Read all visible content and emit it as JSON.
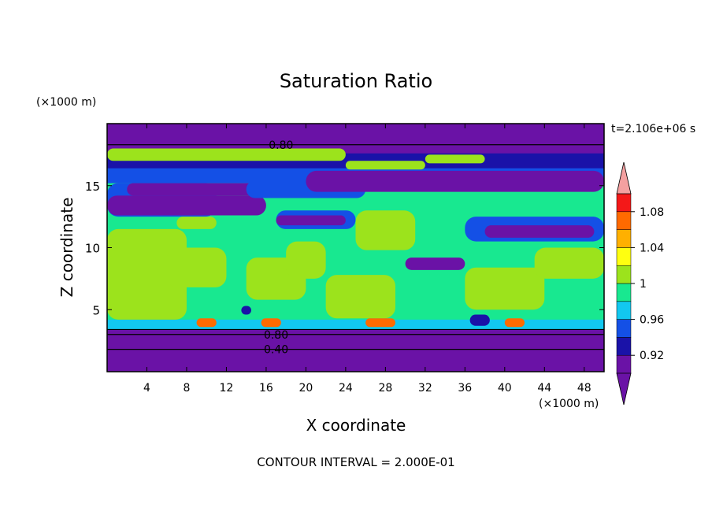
{
  "chart_data": {
    "type": "heatmap",
    "title": "Saturation Ratio",
    "xlabel": "X coordinate",
    "ylabel": "Z coordinate",
    "x_unit": "(×1000 m)",
    "y_unit": "(×1000 m)",
    "time_label": "t=2.106e+06 s",
    "footer": "CONTOUR INTERVAL = 2.000E-01",
    "xlim": [
      0,
      50
    ],
    "ylim": [
      0,
      20
    ],
    "x_ticks": [
      "4",
      "8",
      "12",
      "16",
      "20",
      "24",
      "28",
      "32",
      "36",
      "40",
      "44",
      "48"
    ],
    "y_ticks": [
      "5",
      "10",
      "15"
    ],
    "colorbar": {
      "labels": [
        "1.08",
        "1.04",
        "1",
        "0.96",
        "0.92"
      ],
      "levels": [
        {
          "lo": 0.9,
          "hi": 0.92,
          "color": "#6a12a6"
        },
        {
          "lo": 0.92,
          "hi": 0.94,
          "color": "#1a12a8"
        },
        {
          "lo": 0.94,
          "hi": 0.96,
          "color": "#1450e6"
        },
        {
          "lo": 0.96,
          "hi": 0.98,
          "color": "#12c8f0"
        },
        {
          "lo": 0.98,
          "hi": 1.0,
          "color": "#18e890"
        },
        {
          "lo": 1.0,
          "hi": 1.02,
          "color": "#9ce31c"
        },
        {
          "lo": 1.02,
          "hi": 1.04,
          "color": "#ffff10"
        },
        {
          "lo": 1.04,
          "hi": 1.06,
          "color": "#ffb000"
        },
        {
          "lo": 1.06,
          "hi": 1.08,
          "color": "#ff6a00"
        },
        {
          "lo": 1.08,
          "hi": 1.1,
          "color": "#f41818"
        }
      ],
      "over_color": "#f4a0a0",
      "under_color": "#6a12a6"
    },
    "contour_labels": [
      {
        "text": "0.80",
        "x": 17.5,
        "z": 18.3
      },
      {
        "text": "0.80",
        "x": 17.0,
        "z": 3.0
      },
      {
        "text": "0.40",
        "x": 17.0,
        "z": 1.8
      }
    ],
    "regions": [
      {
        "value": 0.88,
        "x0": 0,
        "x1": 50,
        "z0": 0,
        "z1": 3.4
      },
      {
        "value": 0.88,
        "x0": 0,
        "x1": 50,
        "z0": 17.5,
        "z1": 20
      },
      {
        "value": 0.93,
        "x0": 0,
        "x1": 50,
        "z0": 16.2,
        "z1": 17.6
      },
      {
        "value": 0.95,
        "x0": 0,
        "x1": 50,
        "z0": 15.0,
        "z1": 16.4
      },
      {
        "value": 0.99,
        "x0": 0,
        "x1": 50,
        "z0": 3.4,
        "z1": 15.2
      },
      {
        "value": 0.97,
        "x0": 0,
        "x1": 50,
        "z0": 3.4,
        "z1": 4.2
      },
      {
        "value": 0.94,
        "x0": 0,
        "x1": 11,
        "z0": 12.5,
        "z1": 15.2
      },
      {
        "value": 0.9,
        "x0": 0,
        "x1": 16,
        "z0": 12.6,
        "z1": 14.2
      },
      {
        "value": 0.9,
        "x0": 2,
        "x1": 16,
        "z0": 14.2,
        "z1": 15.2
      },
      {
        "value": 0.95,
        "x0": 14,
        "x1": 26,
        "z0": 14.0,
        "z1": 15.4
      },
      {
        "value": 0.9,
        "x0": 20,
        "x1": 50,
        "z0": 14.5,
        "z1": 16.2
      },
      {
        "value": 0.94,
        "x0": 17,
        "x1": 25,
        "z0": 11.5,
        "z1": 13.0
      },
      {
        "value": 0.9,
        "x0": 17,
        "x1": 24,
        "z0": 11.8,
        "z1": 12.6
      },
      {
        "value": 0.95,
        "x0": 36,
        "x1": 50,
        "z0": 10.5,
        "z1": 12.5
      },
      {
        "value": 0.9,
        "x0": 38,
        "x1": 49,
        "z0": 10.8,
        "z1": 11.8
      },
      {
        "value": 0.9,
        "x0": 30,
        "x1": 36,
        "z0": 8.2,
        "z1": 9.2
      },
      {
        "value": 1.01,
        "x0": 0,
        "x1": 8,
        "z0": 4.2,
        "z1": 11.5
      },
      {
        "value": 1.01,
        "x0": 6,
        "x1": 12,
        "z0": 6.8,
        "z1": 10.0
      },
      {
        "value": 1.01,
        "x0": 7,
        "x1": 11,
        "z0": 11.5,
        "z1": 12.5
      },
      {
        "value": 1.01,
        "x0": 14,
        "x1": 20,
        "z0": 5.8,
        "z1": 9.2
      },
      {
        "value": 1.01,
        "x0": 18,
        "x1": 22,
        "z0": 7.5,
        "z1": 10.5
      },
      {
        "value": 1.01,
        "x0": 22,
        "x1": 29,
        "z0": 4.3,
        "z1": 7.8
      },
      {
        "value": 1.01,
        "x0": 25,
        "x1": 31,
        "z0": 9.8,
        "z1": 13.0
      },
      {
        "value": 1.01,
        "x0": 36,
        "x1": 44,
        "z0": 5.0,
        "z1": 8.4
      },
      {
        "value": 1.01,
        "x0": 43,
        "x1": 50,
        "z0": 7.5,
        "z1": 10.0
      },
      {
        "value": 1.01,
        "x0": 0,
        "x1": 24,
        "z0": 17.0,
        "z1": 18.0
      },
      {
        "value": 1.01,
        "x0": 24,
        "x1": 32,
        "z0": 16.3,
        "z1": 17.0
      },
      {
        "value": 1.01,
        "x0": 32,
        "x1": 38,
        "z0": 16.8,
        "z1": 17.5
      },
      {
        "value": 1.07,
        "x0": 9,
        "x1": 11,
        "z0": 3.6,
        "z1": 4.3
      },
      {
        "value": 1.07,
        "x0": 15.5,
        "x1": 17.5,
        "z0": 3.6,
        "z1": 4.3
      },
      {
        "value": 1.07,
        "x0": 26,
        "x1": 29,
        "z0": 3.6,
        "z1": 4.3
      },
      {
        "value": 1.07,
        "x0": 40,
        "x1": 42,
        "z0": 3.6,
        "z1": 4.3
      },
      {
        "value": 0.93,
        "x0": 36.5,
        "x1": 38.5,
        "z0": 3.7,
        "z1": 4.6
      },
      {
        "value": 0.93,
        "x0": 13.5,
        "x1": 14.5,
        "z0": 4.6,
        "z1": 5.3
      }
    ]
  }
}
